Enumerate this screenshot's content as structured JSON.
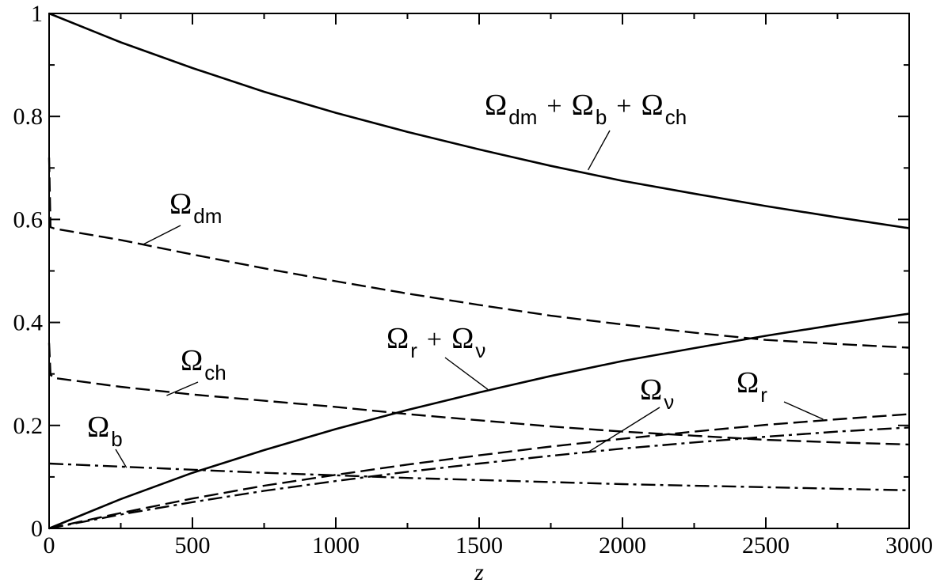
{
  "chart_data": {
    "type": "line",
    "title": "",
    "xlabel": "z",
    "ylabel": "",
    "xlim": [
      0,
      3000
    ],
    "ylim": [
      0,
      1
    ],
    "grid": false,
    "x_ticks": [
      0,
      500,
      1000,
      1500,
      2000,
      2500,
      3000
    ],
    "x_tick_labels": [
      "0",
      "500",
      "1000",
      "1500",
      "2000",
      "2500",
      "3000"
    ],
    "y_ticks": [
      0,
      0.2,
      0.4,
      0.6,
      0.8,
      1
    ],
    "y_tick_labels": [
      "0",
      "0.2",
      "0.4",
      "0.6",
      "0.8",
      "1"
    ],
    "series": [
      {
        "name": "Ωdm + Ωb + Ωch",
        "style": "solid",
        "points": [
          [
            0,
            1.0
          ],
          [
            250,
            0.944
          ],
          [
            500,
            0.894
          ],
          [
            750,
            0.848
          ],
          [
            1000,
            0.807
          ],
          [
            1250,
            0.77
          ],
          [
            1500,
            0.736
          ],
          [
            1750,
            0.704
          ],
          [
            2000,
            0.675
          ],
          [
            2250,
            0.65
          ],
          [
            2500,
            0.626
          ],
          [
            2750,
            0.604
          ],
          [
            3000,
            0.583
          ]
        ]
      },
      {
        "name": "Ωdm",
        "style": "dashed",
        "points": [
          [
            0,
            0.72
          ],
          [
            5,
            0.585
          ],
          [
            20,
            0.582
          ],
          [
            250,
            0.56
          ],
          [
            500,
            0.532
          ],
          [
            750,
            0.505
          ],
          [
            1000,
            0.48
          ],
          [
            1250,
            0.456
          ],
          [
            1500,
            0.434
          ],
          [
            1750,
            0.413
          ],
          [
            2000,
            0.396
          ],
          [
            2250,
            0.38
          ],
          [
            2500,
            0.366
          ],
          [
            2750,
            0.358
          ],
          [
            3000,
            0.351
          ]
        ]
      },
      {
        "name": "Ωch",
        "style": "dashed",
        "points": [
          [
            0,
            0.36
          ],
          [
            5,
            0.298
          ],
          [
            20,
            0.292
          ],
          [
            250,
            0.275
          ],
          [
            500,
            0.26
          ],
          [
            750,
            0.248
          ],
          [
            1000,
            0.236
          ],
          [
            1250,
            0.222
          ],
          [
            1500,
            0.21
          ],
          [
            1750,
            0.198
          ],
          [
            2000,
            0.188
          ],
          [
            2250,
            0.18
          ],
          [
            2500,
            0.172
          ],
          [
            2750,
            0.167
          ],
          [
            3000,
            0.163
          ]
        ]
      },
      {
        "name": "Ωb",
        "style": "dashdot",
        "points": [
          [
            0,
            0.126
          ],
          [
            250,
            0.12
          ],
          [
            500,
            0.114
          ],
          [
            750,
            0.108
          ],
          [
            1000,
            0.103
          ],
          [
            1250,
            0.098
          ],
          [
            1500,
            0.094
          ],
          [
            1750,
            0.09
          ],
          [
            2000,
            0.086
          ],
          [
            2250,
            0.083
          ],
          [
            2500,
            0.08
          ],
          [
            2750,
            0.077
          ],
          [
            3000,
            0.074
          ]
        ]
      },
      {
        "name": "Ωr + Ων",
        "style": "solid",
        "points": [
          [
            0,
            0.0
          ],
          [
            250,
            0.057
          ],
          [
            500,
            0.108
          ],
          [
            750,
            0.152
          ],
          [
            1000,
            0.193
          ],
          [
            1250,
            0.23
          ],
          [
            1500,
            0.264
          ],
          [
            1750,
            0.296
          ],
          [
            2000,
            0.325
          ],
          [
            2250,
            0.35
          ],
          [
            2500,
            0.374
          ],
          [
            2750,
            0.396
          ],
          [
            3000,
            0.417
          ]
        ]
      },
      {
        "name": "Ωr",
        "style": "dashed",
        "points": [
          [
            0,
            0.0
          ],
          [
            250,
            0.03
          ],
          [
            500,
            0.058
          ],
          [
            750,
            0.083
          ],
          [
            1000,
            0.104
          ],
          [
            1250,
            0.124
          ],
          [
            1500,
            0.142
          ],
          [
            1750,
            0.159
          ],
          [
            2000,
            0.174
          ],
          [
            2250,
            0.188
          ],
          [
            2500,
            0.201
          ],
          [
            2750,
            0.212
          ],
          [
            3000,
            0.222
          ]
        ]
      },
      {
        "name": "Ων",
        "style": "dashdot",
        "points": [
          [
            0,
            0.0
          ],
          [
            250,
            0.027
          ],
          [
            500,
            0.051
          ],
          [
            750,
            0.073
          ],
          [
            1000,
            0.092
          ],
          [
            1250,
            0.11
          ],
          [
            1500,
            0.126
          ],
          [
            1750,
            0.141
          ],
          [
            2000,
            0.155
          ],
          [
            2250,
            0.167
          ],
          [
            2500,
            0.178
          ],
          [
            2750,
            0.188
          ],
          [
            3000,
            0.196
          ]
        ]
      }
    ],
    "annotations": [
      {
        "series": "Ωdm + Ωb + Ωch",
        "omega": "Ω",
        "sub": "dm",
        "plus1": "+",
        "omega2": "Ω",
        "sub2": "b",
        "plus2": "+",
        "omega3": "Ω",
        "sub3": "ch",
        "pointer_at": [
          1880,
          0.696
        ]
      },
      {
        "series": "Ωdm",
        "omega": "Ω",
        "sub": "dm",
        "pointer_at": [
          330,
          0.552
        ]
      },
      {
        "series": "Ωch",
        "omega": "Ω",
        "sub": "ch",
        "pointer_at": [
          410,
          0.258
        ]
      },
      {
        "series": "Ωb",
        "omega": "Ω",
        "sub": "b",
        "pointer_at": [
          270,
          0.118
        ]
      },
      {
        "series": "Ωr + Ων",
        "omega": "Ω",
        "sub": "r",
        "plus1": "+",
        "omega2": "Ω",
        "sub2": "ν",
        "pointer_at": [
          1530,
          0.27
        ]
      },
      {
        "series": "Ων",
        "omega": "Ω",
        "sub": "ν",
        "pointer_at": [
          1880,
          0.148
        ]
      },
      {
        "series": "Ωr",
        "omega": "Ω",
        "sub": "r",
        "pointer_at": [
          2700,
          0.212
        ]
      }
    ]
  }
}
